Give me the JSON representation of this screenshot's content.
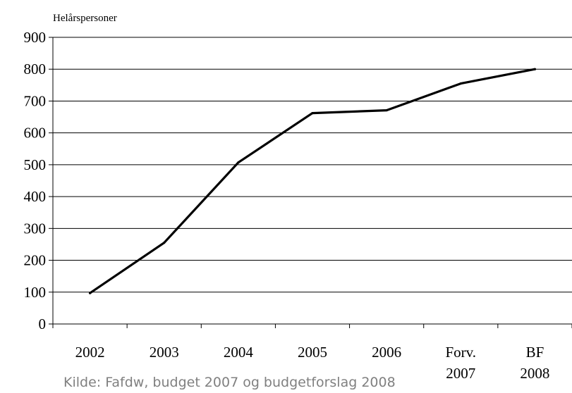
{
  "chart_data": {
    "type": "line",
    "title": "",
    "ylabel": "Helårspersoner",
    "xlabel": "",
    "categories": [
      [
        "2002"
      ],
      [
        "2003"
      ],
      [
        "2004"
      ],
      [
        "2005"
      ],
      [
        "2006"
      ],
      [
        "Forv.",
        "2007"
      ],
      [
        "BF",
        "2008"
      ]
    ],
    "series": [
      {
        "values": [
          97,
          255,
          507,
          662,
          671,
          755,
          800
        ]
      }
    ],
    "ylim": [
      0,
      900
    ],
    "yticks": [
      "0",
      "100",
      "200",
      "300",
      "400",
      "500",
      "600",
      "700",
      "800",
      "900"
    ],
    "grid": true,
    "line_color": "#000000",
    "source": "Kilde: Fafdw, budget 2007 og budgetforslag 2008"
  }
}
